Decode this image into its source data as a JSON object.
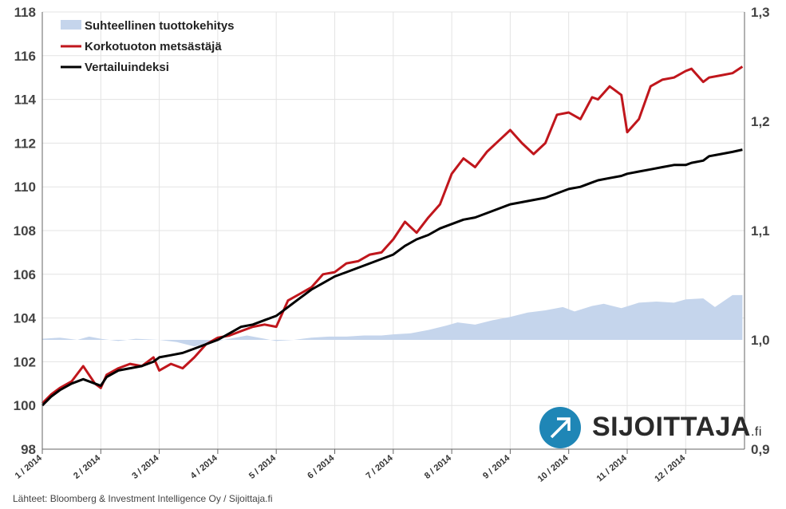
{
  "chart_data": {
    "type": "line",
    "legend_position": "top-left",
    "grid": true,
    "x_tick_labels": [
      "1 / 2014",
      "2 / 2014",
      "3 / 2014",
      "4 / 2014",
      "5 / 2014",
      "6 / 2014",
      "7 / 2014",
      "8 / 2014",
      "9 / 2014",
      "10 / 2014",
      "11 / 2014",
      "12 / 2014"
    ],
    "y_left": {
      "ylim": [
        98,
        118
      ],
      "ticks": [
        "98",
        "100",
        "102",
        "104",
        "106",
        "108",
        "110",
        "112",
        "114",
        "116",
        "118"
      ]
    },
    "y_right": {
      "ylim": [
        0.9,
        1.3
      ],
      "ticks": [
        "0,9",
        "1,0",
        "1,1",
        "1,2",
        "1,3"
      ]
    },
    "series": [
      {
        "name": "Suhteellinen tuottokehitys",
        "axis": "right",
        "style": "area",
        "color": "#c5d5ec",
        "x": [
          0,
          0.3,
          0.6,
          0.8,
          1.0,
          1.3,
          1.6,
          2.0,
          2.3,
          2.6,
          2.9,
          3.2,
          3.5,
          3.8,
          4.0,
          4.3,
          4.6,
          4.9,
          5.2,
          5.5,
          5.8,
          6.0,
          6.3,
          6.6,
          6.9,
          7.1,
          7.4,
          7.7,
          8.0,
          8.3,
          8.6,
          8.9,
          9.1,
          9.4,
          9.6,
          9.9,
          10.2,
          10.5,
          10.8,
          11.0,
          11.3,
          11.5,
          11.8,
          11.97
        ],
        "values": [
          1.001,
          1.002,
          1.0,
          1.003,
          1.001,
          0.999,
          1.001,
          1.0,
          0.998,
          0.994,
          0.998,
          1.001,
          1.004,
          1.001,
          0.999,
          1.0,
          1.002,
          1.003,
          1.003,
          1.004,
          1.004,
          1.005,
          1.006,
          1.009,
          1.013,
          1.016,
          1.014,
          1.018,
          1.021,
          1.025,
          1.027,
          1.03,
          1.026,
          1.031,
          1.033,
          1.029,
          1.034,
          1.035,
          1.034,
          1.037,
          1.038,
          1.03,
          1.041,
          1.041
        ]
      },
      {
        "name": "Korkotuoton metsästäjä",
        "axis": "left",
        "style": "line",
        "color": "#c0161c",
        "x": [
          0,
          0.15,
          0.3,
          0.5,
          0.7,
          0.9,
          1.0,
          1.1,
          1.3,
          1.5,
          1.7,
          1.9,
          2.0,
          2.2,
          2.4,
          2.6,
          2.8,
          3.0,
          3.2,
          3.4,
          3.6,
          3.8,
          4.0,
          4.2,
          4.4,
          4.6,
          4.8,
          5.0,
          5.2,
          5.4,
          5.6,
          5.8,
          6.0,
          6.2,
          6.4,
          6.6,
          6.8,
          7.0,
          7.2,
          7.4,
          7.6,
          7.8,
          8.0,
          8.2,
          8.4,
          8.6,
          8.8,
          9.0,
          9.2,
          9.4,
          9.5,
          9.7,
          9.9,
          10.0,
          10.2,
          10.4,
          10.6,
          10.8,
          11.0,
          11.1,
          11.3,
          11.4,
          11.6,
          11.8,
          11.97
        ],
        "values": [
          100.1,
          100.5,
          100.8,
          101.1,
          101.8,
          101.0,
          100.8,
          101.4,
          101.7,
          101.9,
          101.8,
          102.2,
          101.6,
          101.9,
          101.7,
          102.2,
          102.8,
          103.1,
          103.2,
          103.4,
          103.6,
          103.7,
          103.6,
          104.8,
          105.1,
          105.4,
          106.0,
          106.1,
          106.5,
          106.6,
          106.9,
          107.0,
          107.6,
          108.4,
          107.9,
          108.6,
          109.2,
          110.6,
          111.3,
          110.9,
          111.6,
          112.1,
          112.6,
          112.0,
          111.5,
          112.0,
          113.3,
          113.4,
          113.1,
          114.1,
          114.0,
          114.6,
          114.2,
          112.5,
          113.1,
          114.6,
          114.9,
          115.0,
          115.3,
          115.4,
          114.8,
          115.0,
          115.1,
          115.2,
          115.5
        ],
        "_note": ""
      },
      {
        "name": "Vertailuindeksi",
        "axis": "left",
        "style": "line",
        "color": "#000000",
        "x": [
          0,
          0.15,
          0.3,
          0.5,
          0.7,
          0.9,
          1.0,
          1.1,
          1.3,
          1.5,
          1.7,
          1.9,
          2.0,
          2.2,
          2.4,
          2.6,
          2.8,
          3.0,
          3.2,
          3.4,
          3.6,
          3.8,
          4.0,
          4.2,
          4.4,
          4.6,
          4.8,
          5.0,
          5.2,
          5.4,
          5.6,
          5.8,
          6.0,
          6.2,
          6.4,
          6.6,
          6.8,
          7.0,
          7.2,
          7.4,
          7.6,
          7.8,
          8.0,
          8.2,
          8.4,
          8.6,
          8.8,
          9.0,
          9.2,
          9.4,
          9.5,
          9.7,
          9.9,
          10.0,
          10.2,
          10.4,
          10.6,
          10.8,
          11.0,
          11.1,
          11.3,
          11.4,
          11.6,
          11.8,
          11.97
        ],
        "values": [
          100.0,
          100.4,
          100.7,
          101.0,
          101.2,
          101.0,
          100.9,
          101.3,
          101.6,
          101.7,
          101.8,
          102.0,
          102.2,
          102.3,
          102.4,
          102.6,
          102.8,
          103.0,
          103.3,
          103.6,
          103.7,
          103.9,
          104.1,
          104.5,
          104.9,
          105.3,
          105.6,
          105.9,
          106.1,
          106.3,
          106.5,
          106.7,
          106.9,
          107.3,
          107.6,
          107.8,
          108.1,
          108.3,
          108.5,
          108.6,
          108.8,
          109.0,
          109.2,
          109.3,
          109.4,
          109.5,
          109.7,
          109.9,
          110.0,
          110.2,
          110.3,
          110.4,
          110.5,
          110.6,
          110.7,
          110.8,
          110.9,
          111.0,
          111.0,
          111.1,
          111.2,
          111.4,
          111.5,
          111.6,
          111.7
        ]
      }
    ]
  },
  "source_text": "Lähteet: Bloomberg & Investment Intelligence Oy / Sijoittaja.fi",
  "logo": {
    "name": "SIJOITTAJA",
    "suffix": ".fi",
    "color": "#1f86b6"
  }
}
